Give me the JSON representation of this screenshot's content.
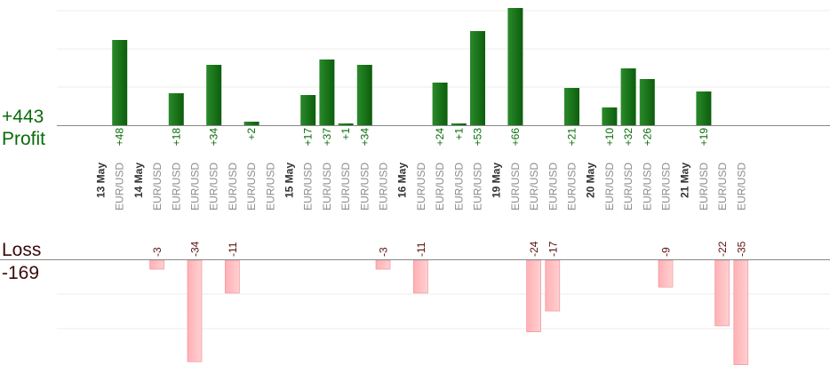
{
  "profit": {
    "word": "Profit",
    "total": "+443",
    "color": "#0a6b0a"
  },
  "loss": {
    "word": "Loss",
    "total": "-169",
    "color": "#3a0a0a"
  },
  "chart_data": {
    "type": "bar",
    "grid": true,
    "profit_ylim": [
      0,
      75
    ],
    "loss_ylim": [
      0,
      34
    ],
    "categories": [
      {
        "kind": "date",
        "label": "13 May"
      },
      {
        "kind": "trade",
        "label": "EUR/USD",
        "value": 48
      },
      {
        "kind": "date",
        "label": "14 May"
      },
      {
        "kind": "trade",
        "label": "EUR/USD",
        "value": -3
      },
      {
        "kind": "trade",
        "label": "EUR/USD",
        "value": 18
      },
      {
        "kind": "trade",
        "label": "EUR/USD",
        "value": -34
      },
      {
        "kind": "trade",
        "label": "EUR/USD",
        "value": 34
      },
      {
        "kind": "trade",
        "label": "EUR/USD",
        "value": -11
      },
      {
        "kind": "trade",
        "label": "EUR/USD",
        "value": 2
      },
      {
        "kind": "trade",
        "label": "EUR/USD",
        "value": null
      },
      {
        "kind": "date",
        "label": "15 May"
      },
      {
        "kind": "trade",
        "label": "EUR/USD",
        "value": 17
      },
      {
        "kind": "trade",
        "label": "EUR/USD",
        "value": 37
      },
      {
        "kind": "trade",
        "label": "EUR/USD",
        "value": 1
      },
      {
        "kind": "trade",
        "label": "EUR/USD",
        "value": 34
      },
      {
        "kind": "trade",
        "label": "EUR/USD",
        "value": -3
      },
      {
        "kind": "date",
        "label": "16 May"
      },
      {
        "kind": "trade",
        "label": "EUR/USD",
        "value": -11
      },
      {
        "kind": "trade",
        "label": "EUR/USD",
        "value": 24
      },
      {
        "kind": "trade",
        "label": "EUR/USD",
        "value": 1
      },
      {
        "kind": "trade",
        "label": "EUR/USD",
        "value": 53
      },
      {
        "kind": "date",
        "label": "19 May"
      },
      {
        "kind": "trade",
        "label": "EUR/USD",
        "value": 66
      },
      {
        "kind": "trade",
        "label": "EUR/USD",
        "value": -24
      },
      {
        "kind": "trade",
        "label": "EUR/USD",
        "value": -17
      },
      {
        "kind": "trade",
        "label": "EUR/USD",
        "value": 21
      },
      {
        "kind": "date",
        "label": "20 May"
      },
      {
        "kind": "trade",
        "label": "EUR/USD",
        "value": 10
      },
      {
        "kind": "trade",
        "label": "EUR/USD",
        "value": 32
      },
      {
        "kind": "trade",
        "label": "EUR/USD",
        "value": 26
      },
      {
        "kind": "trade",
        "label": "EUR/USD",
        "value": -9
      },
      {
        "kind": "date",
        "label": "21 May"
      },
      {
        "kind": "trade",
        "label": "EUR/USD",
        "value": 19
      },
      {
        "kind": "trade",
        "label": "EUR/USD",
        "value": -22
      },
      {
        "kind": "trade",
        "label": "EUR/USD",
        "value": -35
      }
    ],
    "colors": {
      "profit_bar": "#0c5e0c",
      "profit_bar_light": "#2a8a2a",
      "loss_bar": "#ffb0b4",
      "loss_bar_light": "#ffd0d2",
      "profit_text": "#0a6b0a",
      "loss_text": "#5a1010",
      "tick_text": "#8c8c8c",
      "date_text": "#333333",
      "grid": "#ececec",
      "axis": "#888888"
    }
  }
}
